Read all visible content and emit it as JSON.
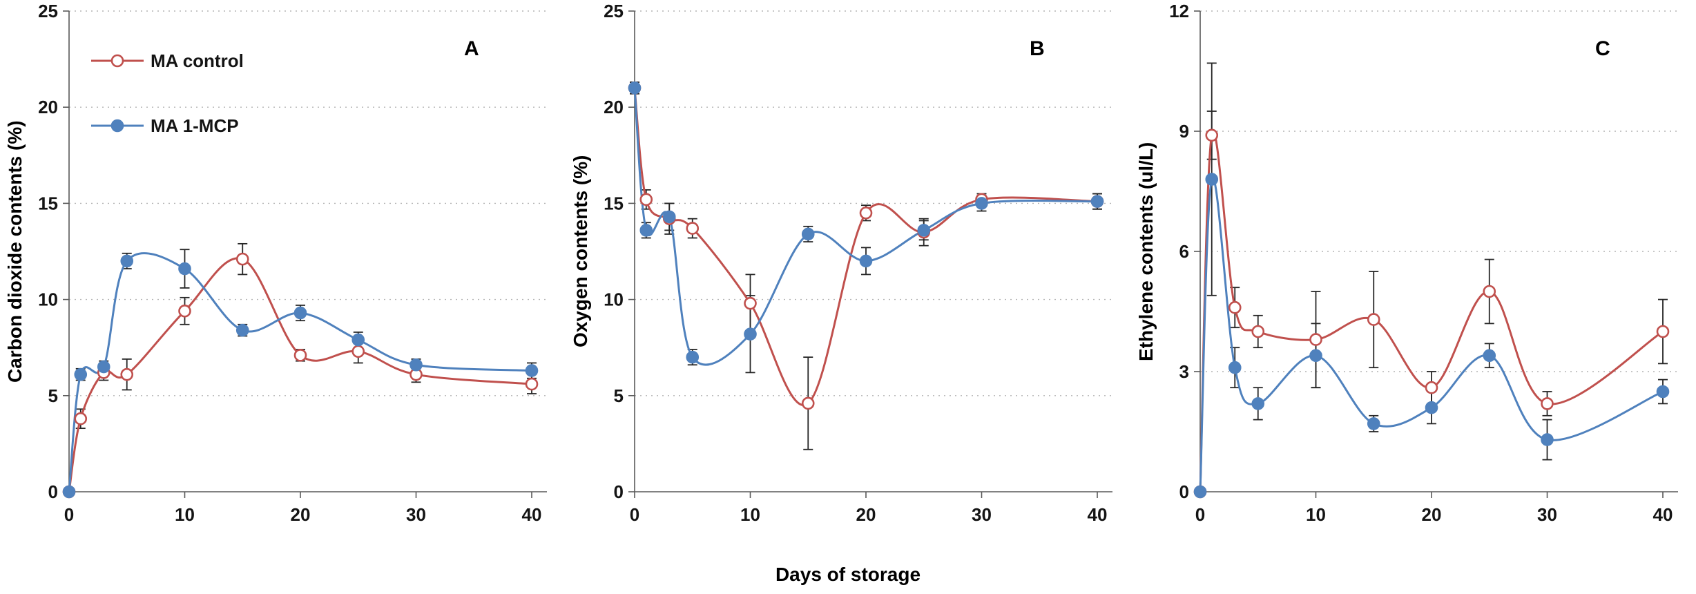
{
  "figure": {
    "background": "#ffffff",
    "gridline_color": "#b3b3b3",
    "axis_color": "#595959",
    "tick_label_color": "#141414",
    "error_bar_color": "#262626",
    "control_color": "#C0504D",
    "mcp_color": "#4F81BD"
  },
  "chart_data": [
    {
      "type": "line",
      "panel_label": "A",
      "ylabel": "Carbon dioxide contents (%)",
      "ylim": [
        0,
        25
      ],
      "yticks": [
        0,
        5,
        10,
        15,
        20,
        25
      ],
      "xlim": [
        0,
        40
      ],
      "xticks": [
        0,
        10,
        20,
        30,
        40
      ],
      "grid": true,
      "legend": true,
      "legend_position": "top-left",
      "x": [
        0,
        1,
        3,
        5,
        10,
        15,
        20,
        25,
        30,
        40
      ],
      "series": [
        {
          "name": "MA control",
          "color": "#C0504D",
          "marker": "open-circle",
          "values": [
            0,
            3.8,
            6.2,
            6.1,
            9.4,
            12.1,
            7.1,
            7.3,
            6.1,
            5.6
          ],
          "errors": [
            0.1,
            0.5,
            0.4,
            0.8,
            0.7,
            0.8,
            0.3,
            0.6,
            0.4,
            0.5
          ]
        },
        {
          "name": "MA 1-MCP",
          "color": "#4F81BD",
          "marker": "filled-circle",
          "values": [
            0,
            6.1,
            6.5,
            12.0,
            11.6,
            8.4,
            9.3,
            7.9,
            6.6,
            6.3
          ],
          "errors": [
            0.1,
            0.3,
            0.3,
            0.4,
            1.0,
            0.3,
            0.4,
            0.4,
            0.3,
            0.4
          ]
        }
      ]
    },
    {
      "type": "line",
      "panel_label": "B",
      "ylabel": "Oxygen contents (%)",
      "xlabel": "Days of storage",
      "ylim": [
        0,
        25
      ],
      "yticks": [
        0,
        5,
        10,
        15,
        20,
        25
      ],
      "xlim": [
        0,
        40
      ],
      "xticks": [
        0,
        10,
        20,
        30,
        40
      ],
      "grid": true,
      "legend": false,
      "x": [
        0,
        1,
        3,
        5,
        10,
        15,
        20,
        25,
        30,
        40
      ],
      "series": [
        {
          "name": "MA control",
          "color": "#C0504D",
          "marker": "open-circle",
          "values": [
            21.0,
            15.2,
            14.2,
            13.7,
            9.8,
            4.6,
            14.5,
            13.5,
            15.2,
            15.1
          ],
          "errors": [
            0.3,
            0.5,
            0.8,
            0.5,
            1.5,
            2.4,
            0.4,
            0.7,
            0.3,
            0.4
          ]
        },
        {
          "name": "MA 1-MCP",
          "color": "#4F81BD",
          "marker": "filled-circle",
          "values": [
            21.0,
            13.6,
            14.3,
            7.0,
            8.2,
            13.4,
            12.0,
            13.6,
            15.0,
            15.1
          ],
          "errors": [
            0.3,
            0.4,
            0.7,
            0.4,
            2.0,
            0.4,
            0.7,
            0.5,
            0.4,
            0.4
          ]
        }
      ]
    },
    {
      "type": "line",
      "panel_label": "C",
      "ylabel": "Ethylene contents (ul/L)",
      "ylim": [
        0,
        12
      ],
      "yticks": [
        0,
        3,
        6,
        9,
        12
      ],
      "xlim": [
        0,
        40
      ],
      "xticks": [
        0,
        10,
        20,
        30,
        40
      ],
      "grid": true,
      "legend": false,
      "x": [
        0,
        1,
        3,
        5,
        10,
        15,
        20,
        25,
        30,
        40
      ],
      "series": [
        {
          "name": "MA control",
          "color": "#C0504D",
          "marker": "open-circle",
          "values": [
            0,
            8.9,
            4.6,
            4.0,
            3.8,
            4.3,
            2.6,
            5.0,
            2.2,
            4.0
          ],
          "errors": [
            0.05,
            0.6,
            0.5,
            0.4,
            1.2,
            1.2,
            0.4,
            0.8,
            0.3,
            0.8
          ]
        },
        {
          "name": "MA 1-MCP",
          "color": "#4F81BD",
          "marker": "filled-circle",
          "values": [
            0,
            7.8,
            3.1,
            2.2,
            3.4,
            1.7,
            2.1,
            3.4,
            1.3,
            2.5
          ],
          "errors": [
            0.05,
            2.9,
            0.5,
            0.4,
            0.8,
            0.2,
            0.4,
            0.3,
            0.5,
            0.3
          ]
        }
      ]
    }
  ]
}
